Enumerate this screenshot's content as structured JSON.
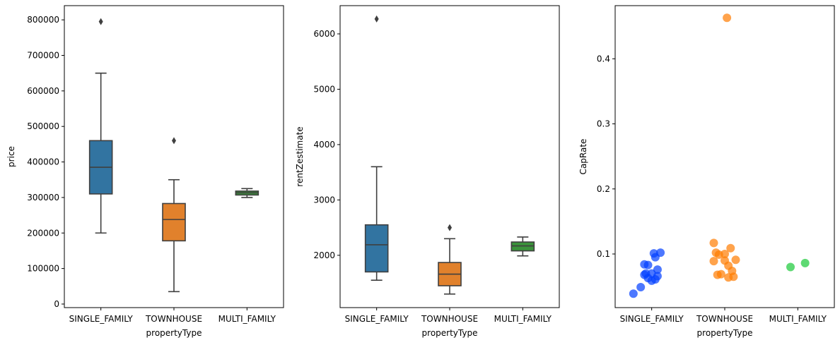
{
  "chart_data": [
    {
      "type": "box",
      "xlabel": "propertyType",
      "ylabel": "price",
      "ylim": [
        -10000,
        840000
      ],
      "yticks": [
        0,
        100000,
        200000,
        300000,
        400000,
        500000,
        600000,
        700000,
        800000
      ],
      "ytick_labels": [
        "0",
        "100000",
        "200000",
        "300000",
        "400000",
        "500000",
        "600000",
        "700000",
        "800000"
      ],
      "categories": [
        "SINGLE_FAMILY",
        "TOWNHOUSE",
        "MULTI_FAMILY"
      ],
      "colors": [
        "#3274a1",
        "#e1812c",
        "#3a923a"
      ],
      "boxes": [
        {
          "category": "SINGLE_FAMILY",
          "whisker_low": 200000,
          "q1": 310000,
          "median": 385000,
          "q3": 460000,
          "whisker_high": 650000,
          "outliers": [
            795000
          ]
        },
        {
          "category": "TOWNHOUSE",
          "whisker_low": 35000,
          "q1": 178000,
          "median": 238000,
          "q3": 283000,
          "whisker_high": 350000,
          "outliers": [
            460000
          ]
        },
        {
          "category": "MULTI_FAMILY",
          "whisker_low": 300000,
          "q1": 307000,
          "median": 313000,
          "q3": 318000,
          "whisker_high": 325000,
          "outliers": []
        }
      ]
    },
    {
      "type": "box",
      "xlabel": "propertyType",
      "ylabel": "rentZestimate",
      "ylim": [
        1055,
        6510
      ],
      "yticks": [
        2000,
        3000,
        4000,
        5000,
        6000
      ],
      "ytick_labels": [
        "2000",
        "3000",
        "4000",
        "5000",
        "6000"
      ],
      "categories": [
        "SINGLE_FAMILY",
        "TOWNHOUSE",
        "MULTI_FAMILY"
      ],
      "colors": [
        "#3274a1",
        "#e1812c",
        "#3a923a"
      ],
      "boxes": [
        {
          "category": "SINGLE_FAMILY",
          "whisker_low": 1550,
          "q1": 1700,
          "median": 2190,
          "q3": 2550,
          "whisker_high": 3600,
          "outliers": [
            6270
          ]
        },
        {
          "category": "TOWNHOUSE",
          "whisker_low": 1300,
          "q1": 1450,
          "median": 1660,
          "q3": 1870,
          "whisker_high": 2300,
          "outliers": [
            2500
          ]
        },
        {
          "category": "MULTI_FAMILY",
          "whisker_low": 1990,
          "q1": 2080,
          "median": 2170,
          "q3": 2240,
          "whisker_high": 2330,
          "outliers": []
        }
      ]
    },
    {
      "type": "scatter",
      "xlabel": "propertyType",
      "ylabel": "CapRate",
      "ylim": [
        0.0176,
        0.4817
      ],
      "yticks": [
        0.1,
        0.2,
        0.3,
        0.4
      ],
      "ytick_labels": [
        "0.1",
        "0.2",
        "0.3",
        "0.4"
      ],
      "categories": [
        "SINGLE_FAMILY",
        "TOWNHOUSE",
        "MULTI_FAMILY"
      ],
      "colors": [
        "#023eff",
        "#ff7c00",
        "#1ac938"
      ],
      "points": [
        {
          "category": "SINGLE_FAMILY",
          "values": [
            0.039,
            0.049,
            0.059,
            0.061,
            0.063,
            0.066,
            0.068,
            0.07,
            0.07,
            0.076,
            0.083,
            0.084,
            0.095,
            0.101,
            0.102
          ],
          "jitter": [
            -0.25,
            -0.15,
            0.0,
            0.05,
            -0.05,
            0.08,
            -0.1,
            0.0,
            -0.08,
            0.08,
            -0.05,
            -0.1,
            0.05,
            0.03,
            0.12
          ]
        },
        {
          "category": "TOWNHOUSE",
          "values": [
            0.064,
            0.065,
            0.068,
            0.069,
            0.074,
            0.082,
            0.089,
            0.091,
            0.09,
            0.099,
            0.1,
            0.102,
            0.109,
            0.117,
            0.463
          ],
          "jitter": [
            0.05,
            0.12,
            -0.1,
            -0.05,
            0.1,
            0.05,
            -0.15,
            0.15,
            0.0,
            -0.08,
            0.0,
            -0.12,
            0.08,
            -0.15,
            0.03
          ]
        },
        {
          "category": "MULTI_FAMILY",
          "values": [
            0.08,
            0.086
          ],
          "jitter": [
            -0.1,
            0.1
          ]
        }
      ]
    }
  ]
}
